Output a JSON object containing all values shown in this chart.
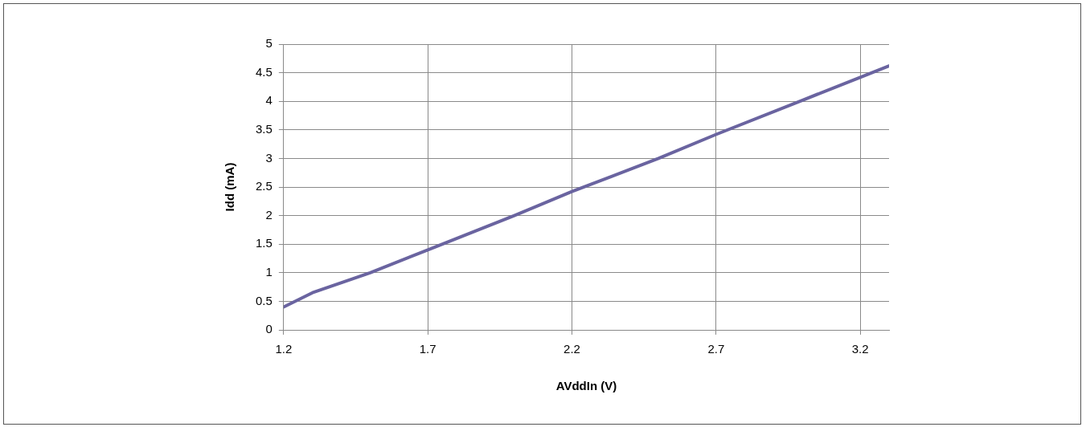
{
  "chart_data": {
    "type": "line",
    "xlabel": "AVddIn (V)",
    "ylabel": "Idd (mA)",
    "x": [
      1.2,
      1.3,
      1.5,
      1.7,
      2.0,
      2.2,
      2.5,
      2.7,
      3.0,
      3.2,
      3.3
    ],
    "series": [
      {
        "color": "#6a64a0",
        "values": [
          0.4,
          0.65,
          1.0,
          1.4,
          2.0,
          2.42,
          3.0,
          3.42,
          4.02,
          4.42,
          4.62
        ]
      }
    ],
    "xlim": [
      1.2,
      3.3
    ],
    "xticks": [
      1.2,
      1.7,
      2.2,
      2.7,
      3.2
    ],
    "ylim": [
      0,
      5
    ],
    "yticks": [
      0,
      0.5,
      1,
      1.5,
      2,
      2.5,
      3,
      3.5,
      4,
      4.5,
      5
    ],
    "grid": true,
    "legend": false,
    "marker": "none",
    "line_style": "solid"
  }
}
